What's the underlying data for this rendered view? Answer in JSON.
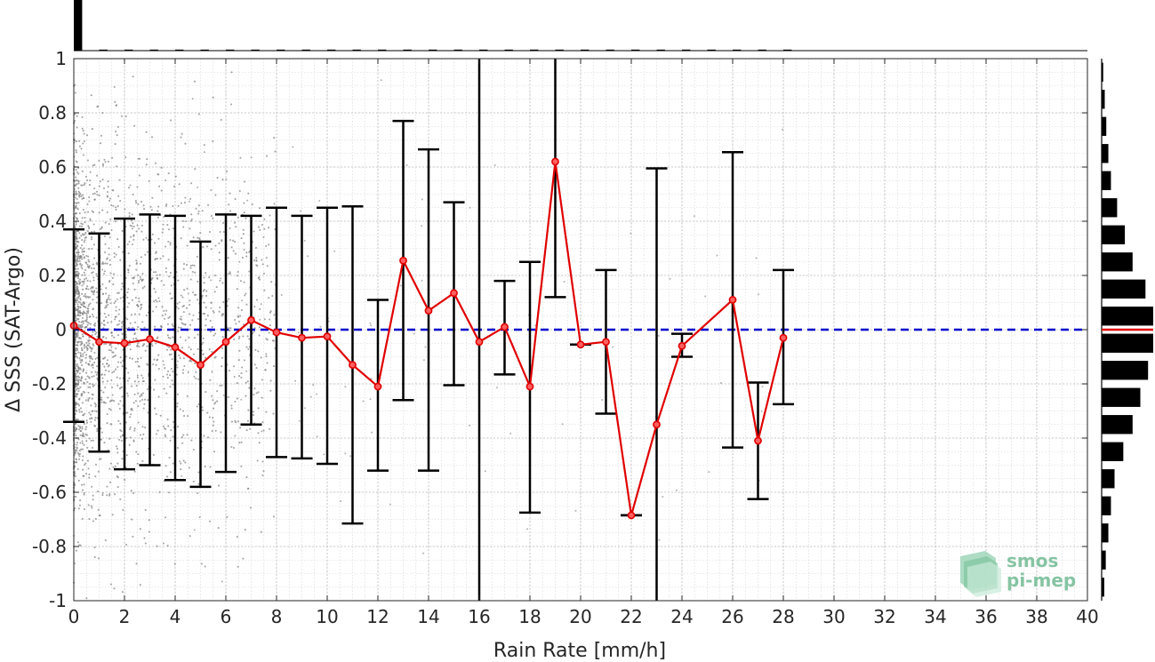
{
  "chart_data": {
    "type": "scatter",
    "xlabel": "Rain Rate [mm/h]",
    "ylabel": "Δ SSS (SAT-Argo)",
    "xlim": [
      0,
      40
    ],
    "ylim": [
      -1,
      1
    ],
    "x_ticks": [
      0,
      2,
      4,
      6,
      8,
      10,
      12,
      14,
      16,
      18,
      20,
      22,
      24,
      26,
      28,
      30,
      32,
      34,
      36,
      38,
      40
    ],
    "y_ticks": [
      -1,
      -0.8,
      -0.6,
      -0.4,
      -0.2,
      0,
      0.2,
      0.4,
      0.6,
      0.8,
      1
    ],
    "x_tick_labels": [
      "0",
      "2",
      "4",
      "6",
      "8",
      "10",
      "12",
      "14",
      "16",
      "18",
      "20",
      "22",
      "24",
      "26",
      "28",
      "30",
      "32",
      "34",
      "36",
      "38",
      "40"
    ],
    "y_tick_labels": [
      "-1",
      "-0.8",
      "-0.6",
      "-0.4",
      "-0.2",
      "0",
      "0.2",
      "0.4",
      "0.6",
      "0.8",
      "1"
    ],
    "grid": true,
    "reference_line": {
      "y": 0,
      "color": "#0000cc",
      "style": "dashed"
    },
    "series": [
      {
        "type": "line-with-errorbars",
        "color": "#e00000",
        "x": [
          0,
          1,
          2,
          3,
          4,
          5,
          6,
          7,
          8,
          9,
          10,
          11,
          12,
          13,
          14,
          15,
          16,
          17,
          18,
          19,
          20,
          21,
          22,
          23,
          24,
          26,
          27,
          28
        ],
        "mean": [
          0.015,
          -0.045,
          -0.05,
          -0.035,
          -0.065,
          -0.13,
          -0.045,
          0.035,
          -0.01,
          -0.03,
          -0.025,
          -0.13,
          -0.21,
          0.255,
          0.07,
          0.135,
          -0.045,
          0.01,
          -0.21,
          0.62,
          -0.055,
          -0.045,
          -0.685,
          -0.35,
          -0.06,
          0.11,
          -0.41,
          -0.03
        ],
        "low": [
          -0.34,
          -0.45,
          -0.515,
          -0.5,
          -0.555,
          -0.58,
          -0.525,
          -0.35,
          -0.47,
          -0.475,
          -0.495,
          -0.715,
          -0.52,
          -0.26,
          -0.52,
          -0.205,
          -1.0,
          -0.165,
          -0.675,
          0.12,
          -0.055,
          -0.31,
          -0.685,
          -1.0,
          -0.1,
          -0.435,
          -0.625,
          -0.275
        ],
        "high": [
          0.37,
          0.355,
          0.41,
          0.425,
          0.42,
          0.325,
          0.425,
          0.42,
          0.45,
          0.42,
          0.45,
          0.455,
          0.11,
          0.77,
          0.665,
          0.47,
          1.0,
          0.18,
          0.25,
          1.0,
          -0.055,
          0.22,
          -0.685,
          0.595,
          -0.015,
          0.655,
          -0.195,
          0.22
        ]
      }
    ],
    "scatter_note_color": "#7f7f7f",
    "top_histogram": {
      "bins": [
        0,
        1,
        2,
        3,
        4,
        5,
        6,
        7,
        8,
        9,
        10,
        11,
        12,
        13,
        14,
        15,
        16,
        17,
        18,
        19,
        20,
        21,
        22,
        23,
        24,
        25,
        26,
        27,
        28
      ],
      "relative_counts": [
        1.0,
        0.02,
        0.015,
        0.012,
        0.01,
        0.008,
        0.006,
        0.005,
        0.004,
        0.003,
        0.003,
        0.002,
        0.002,
        0.002,
        0.002,
        0.001,
        0.001,
        0.001,
        0.001,
        0.001,
        0.001,
        0.001,
        0.001,
        0.001,
        0.001,
        0.001,
        0.001,
        0.001,
        0.001
      ]
    },
    "right_histogram": {
      "bin_centers": [
        0.95,
        0.85,
        0.75,
        0.65,
        0.55,
        0.45,
        0.35,
        0.25,
        0.15,
        0.05,
        -0.05,
        -0.15,
        -0.25,
        -0.35,
        -0.45,
        -0.55,
        -0.65,
        -0.75,
        -0.85,
        -0.95
      ],
      "relative_counts": [
        0.03,
        0.06,
        0.09,
        0.13,
        0.18,
        0.3,
        0.45,
        0.6,
        0.85,
        1.0,
        1.0,
        0.9,
        0.75,
        0.6,
        0.42,
        0.25,
        0.18,
        0.13,
        0.08,
        0.05
      ],
      "median_line_color": "#e00000"
    }
  },
  "logo": {
    "line1": "smos",
    "line2": "pi-mep",
    "color": "#7fbf9f"
  }
}
